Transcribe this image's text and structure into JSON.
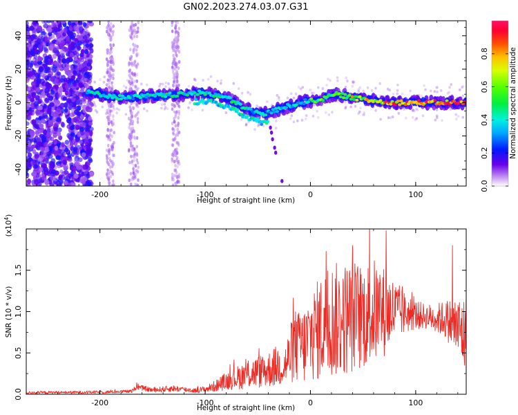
{
  "title": "GN02.2023.274.03.07.G31",
  "colors": {
    "snr_line": "#ee2a24",
    "scatter_low": "#7a10e6",
    "background": "#ffffff"
  },
  "chart_data": [
    {
      "type": "heatmap",
      "xlabel": "Height of straight line (km)",
      "ylabel": "Frequency (Hz)",
      "xlim": [
        -270,
        148
      ],
      "ylim": [
        -50,
        49
      ],
      "x_ticks": [
        -200,
        -100,
        0,
        100
      ],
      "x_tick_labels": [
        "-200",
        "-100",
        "0",
        "100"
      ],
      "y_ticks": [
        40,
        20,
        0,
        -20,
        -40
      ],
      "y_tick_labels": [
        "40",
        "20",
        "0",
        "-20",
        "-40"
      ],
      "ridge_description": "dominant frequency band vs height: near 0 Hz at -210 km, about +5 Hz near -100 km, dips to about -8 Hz near -40 km, about +5 Hz near +25 km, back to 0 Hz beyond +60 km",
      "ridge": [
        [
          -210,
          6
        ],
        [
          -180,
          3
        ],
        [
          -150,
          4
        ],
        [
          -120,
          5
        ],
        [
          -100,
          6
        ],
        [
          -80,
          3
        ],
        [
          -60,
          -4
        ],
        [
          -45,
          -7
        ],
        [
          -35,
          -5
        ],
        [
          -25,
          -3
        ],
        [
          -10,
          0
        ],
        [
          10,
          2
        ],
        [
          25,
          5
        ],
        [
          40,
          3
        ],
        [
          60,
          1
        ],
        [
          80,
          0
        ],
        [
          100,
          0
        ],
        [
          120,
          0
        ],
        [
          148,
          0
        ]
      ],
      "colorbar": {
        "label": "Normalized spectral amplitude",
        "range": [
          0.0,
          1.0
        ],
        "ticks": [
          0.0,
          0.2,
          0.4,
          0.6,
          0.8
        ],
        "tick_labels": [
          "0.0",
          "0.2",
          "0.4",
          "0.6",
          "0.8"
        ]
      }
    },
    {
      "type": "line",
      "xlabel": "Height of straight line (km)",
      "ylabel": "SNR (10 * v/v)",
      "y_multiplier": "(x10",
      "y_multiplier_exp": "4",
      "y_multiplier_close": ")",
      "xlim": [
        -270,
        148
      ],
      "ylim": [
        0,
        20000
      ],
      "x_ticks": [
        -200,
        -100,
        0,
        100
      ],
      "x_tick_labels": [
        "-200",
        "-100",
        "0",
        "100"
      ],
      "y_ticks": [
        0,
        5000,
        10000,
        15000
      ],
      "y_tick_labels": [
        "0.0",
        "0.5",
        "1.0",
        "1.5"
      ],
      "series": [
        {
          "color": "#ee2a24",
          "envelope": {
            "x": [
              -270,
              -200,
              -170,
              -165,
              -150,
              -130,
              -110,
              -100,
              -90,
              -80,
              -70,
              -60,
              -50,
              -40,
              -30,
              -25,
              -20,
              -15,
              -10,
              -5,
              0,
              10,
              20,
              30,
              40,
              50,
              60,
              70,
              80,
              90,
              100,
              110,
              120,
              130,
              140,
              148
            ],
            "mean": [
              200,
              250,
              350,
              900,
              500,
              700,
              450,
              600,
              1000,
              1600,
              2000,
              2400,
              2700,
              3000,
              3500,
              3300,
              4500,
              6000,
              5500,
              6000,
              7000,
              8000,
              9000,
              9000,
              9500,
              9500,
              10000,
              10000,
              10000,
              9800,
              9600,
              9400,
              9200,
              9000,
              8000,
              7000
            ],
            "spread": [
              150,
              180,
              200,
              300,
              300,
              400,
              300,
              400,
              700,
              1100,
              1400,
              1800,
              2000,
              2200,
              2600,
              2400,
              3500,
              4500,
              4500,
              5000,
              5500,
              6500,
              7000,
              7000,
              7000,
              6500,
              6500,
              5500,
              4000,
              2500,
              1800,
              1500,
              1800,
              2500,
              4000,
              5000
            ]
          },
          "peaks": [
            [
              -165,
              1400
            ],
            [
              -10,
              9200
            ],
            [
              15,
              17300
            ],
            [
              40,
              18000
            ],
            [
              72,
              19800
            ],
            [
              135,
              18000
            ]
          ]
        }
      ]
    }
  ]
}
